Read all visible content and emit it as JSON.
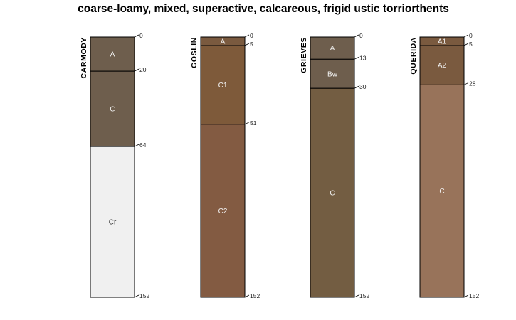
{
  "title": "coarse-loamy, mixed, superactive, calcareous, frigid ustic torriorthents",
  "max_depth": 152,
  "profiles": [
    {
      "name": "CARMODY",
      "horizons": [
        {
          "name": "A",
          "top": 0,
          "bottom": 20,
          "color": "#6e5e4d",
          "label_color": "#f2f2f2"
        },
        {
          "name": "C",
          "top": 20,
          "bottom": 64,
          "color": "#6e5e4d",
          "label_color": "#f2f2f2"
        },
        {
          "name": "Cr",
          "top": 64,
          "bottom": 152,
          "color": "#f0f0f0",
          "label_color": "#333333"
        }
      ]
    },
    {
      "name": "GOSLIN",
      "horizons": [
        {
          "name": "A",
          "top": 0,
          "bottom": 5,
          "color": "#7a5a3f",
          "label_color": "#f2f2f2"
        },
        {
          "name": "C1",
          "top": 5,
          "bottom": 51,
          "color": "#7e5a3a",
          "label_color": "#f2f2f2"
        },
        {
          "name": "C2",
          "top": 51,
          "bottom": 152,
          "color": "#835b42",
          "label_color": "#f2f2f2"
        }
      ]
    },
    {
      "name": "GRIEVES",
      "horizons": [
        {
          "name": "A",
          "top": 0,
          "bottom": 13,
          "color": "#6e5e4d",
          "label_color": "#f2f2f2"
        },
        {
          "name": "Bw",
          "top": 13,
          "bottom": 30,
          "color": "#6e5e4d",
          "label_color": "#f2f2f2"
        },
        {
          "name": "C",
          "top": 30,
          "bottom": 152,
          "color": "#735d42",
          "label_color": "#f2f2f2"
        }
      ]
    },
    {
      "name": "QUERIDA",
      "horizons": [
        {
          "name": "A1",
          "top": 0,
          "bottom": 5,
          "color": "#7a5a3f",
          "label_color": "#f2f2f2"
        },
        {
          "name": "A2",
          "top": 5,
          "bottom": 28,
          "color": "#7a5a3f",
          "label_color": "#f2f2f2"
        },
        {
          "name": "C",
          "top": 28,
          "bottom": 152,
          "color": "#98735a",
          "label_color": "#f2f2f2"
        }
      ]
    }
  ]
}
